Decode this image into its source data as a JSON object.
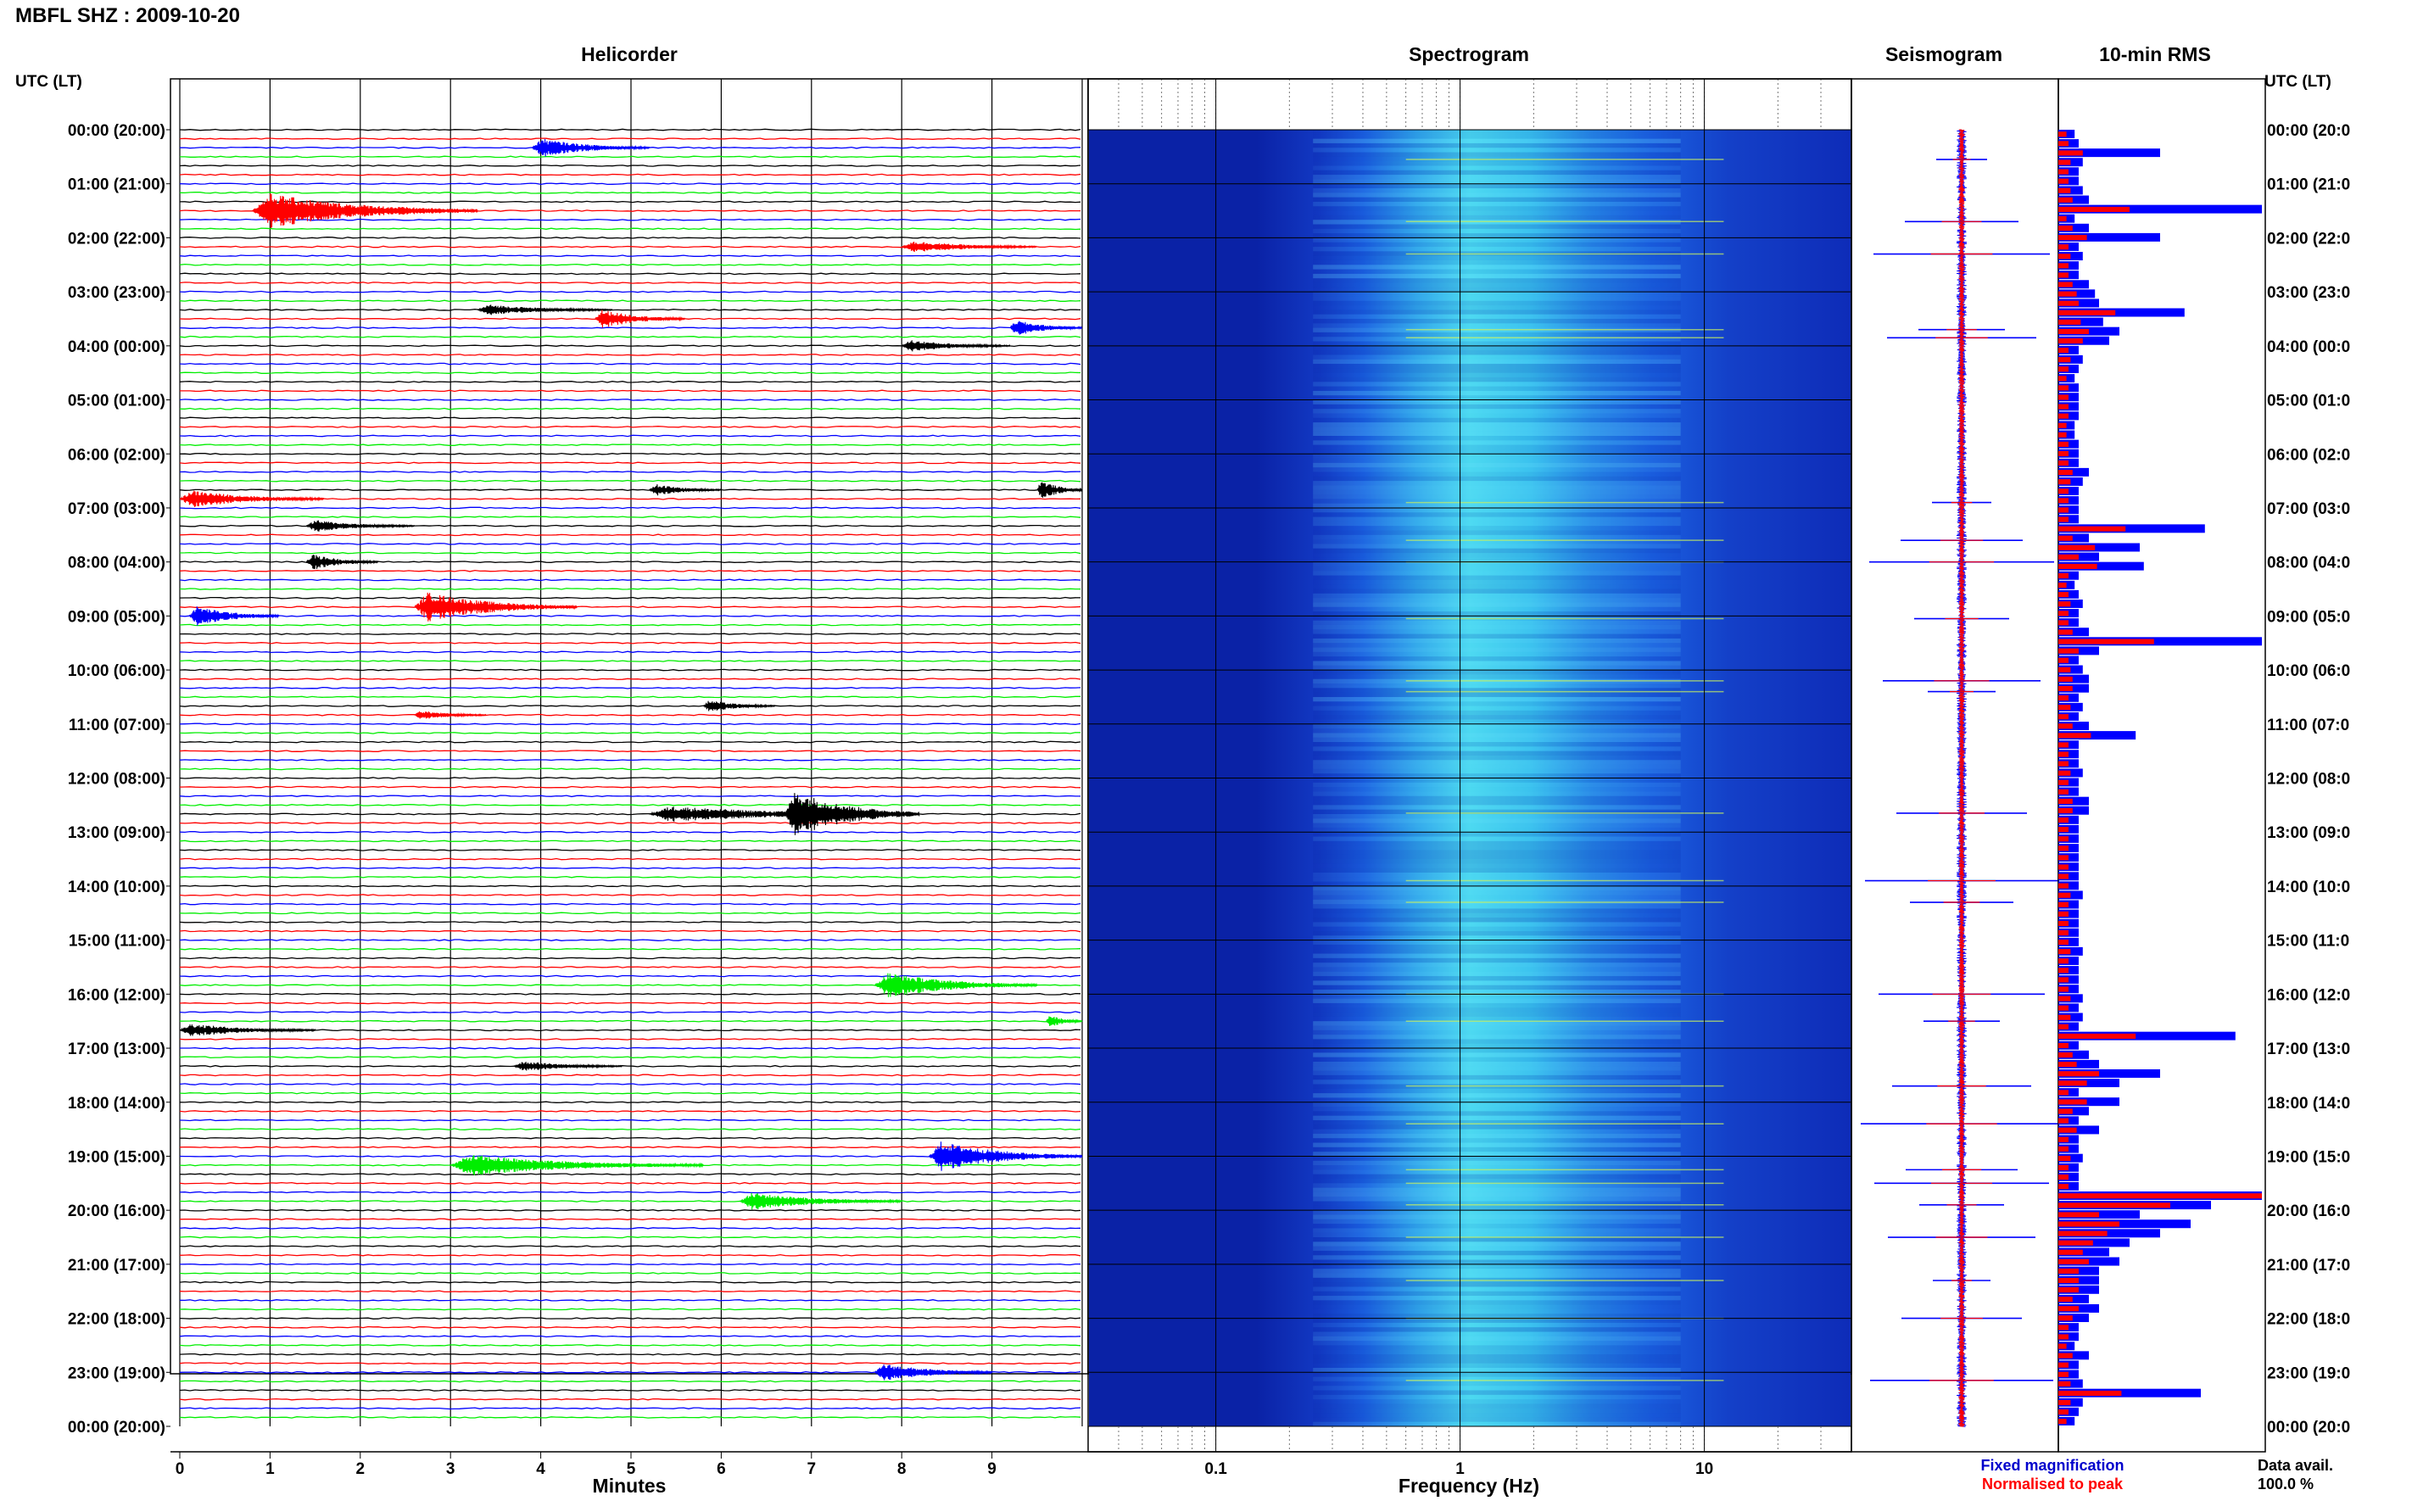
{
  "window_title": "MBFL SHZ : 2009-10-20",
  "panels": {
    "helicorder": "Helicorder",
    "spectrogram": "Spectrogram",
    "seismogram": "Seismogram",
    "rms": "10-min RMS"
  },
  "utc_label_left": "UTC (LT)",
  "utc_label_right": "UTC (LT)",
  "time_labels_left": [
    "00:00 (20:00)",
    "01:00 (21:00)",
    "02:00 (22:00)",
    "03:00 (23:00)",
    "04:00 (00:00)",
    "05:00 (01:00)",
    "06:00 (02:00)",
    "07:00 (03:00)",
    "08:00 (04:00)",
    "09:00 (05:00)",
    "10:00 (06:00)",
    "11:00 (07:00)",
    "12:00 (08:00)",
    "13:00 (09:00)",
    "14:00 (10:00)",
    "15:00 (11:00)",
    "16:00 (12:00)",
    "17:00 (13:00)",
    "18:00 (14:00)",
    "19:00 (15:00)",
    "20:00 (16:00)",
    "21:00 (17:00)",
    "22:00 (18:00)",
    "23:00 (19:00)",
    "00:00 (20:00)"
  ],
  "time_labels_right": [
    "00:00 (20:0",
    "01:00 (21:0",
    "02:00 (22:0",
    "03:00 (23:0",
    "04:00 (00:0",
    "05:00 (01:0",
    "06:00 (02:0",
    "07:00 (03:0",
    "08:00 (04:0",
    "09:00 (05:0",
    "10:00 (06:0",
    "11:00 (07:0",
    "12:00 (08:0",
    "13:00 (09:0",
    "14:00 (10:0",
    "15:00 (11:0",
    "16:00 (12:0",
    "17:00 (13:0",
    "18:00 (14:0",
    "19:00 (15:0",
    "20:00 (16:0",
    "21:00 (17:0",
    "22:00 (18:0",
    "23:00 (19:0",
    "00:00 (20:0"
  ],
  "minutes_ticks": [
    "0",
    "1",
    "2",
    "3",
    "4",
    "5",
    "6",
    "7",
    "8",
    "9"
  ],
  "minutes_label": "Minutes",
  "freq_ticks": [
    "0.1",
    "1",
    "10"
  ],
  "freq_label": "Frequency (Hz)",
  "legend": {
    "fixed": "Fixed magnification",
    "normalised": "Normalised to peak",
    "data_avail_label": "Data avail.",
    "data_avail_value": "100.0 %"
  },
  "colors": {
    "trace_black": "#000000",
    "trace_red": "#ff0000",
    "trace_blue": "#0000ff",
    "trace_green": "#00ee00",
    "legend_blue": "#0000cc",
    "legend_red": "#ff0000",
    "spectro_dark": "#0a22a6",
    "spectro_mid": "#1a5fe0",
    "spectro_bright": "#4ad8f0"
  },
  "chart_data": [
    {
      "type": "line",
      "panel": "helicorder",
      "xlabel": "Minutes",
      "xlim": [
        0,
        10
      ],
      "trace_color_cycle": [
        "black",
        "red",
        "blue",
        "green"
      ],
      "events": [
        {
          "hour": 0.25,
          "minute": 3.9,
          "duration": 1.3,
          "amp": 1.4
        },
        {
          "hour": 1.5,
          "minute": 0.8,
          "duration": 2.5,
          "amp": 2.6
        },
        {
          "hour": 2.1,
          "minute": 8.0,
          "duration": 1.5,
          "amp": 0.9
        },
        {
          "hour": 3.3,
          "minute": 3.3,
          "duration": 1.5,
          "amp": 0.8
        },
        {
          "hour": 3.5,
          "minute": 4.6,
          "duration": 1.0,
          "amp": 1.4
        },
        {
          "hour": 3.65,
          "minute": 9.2,
          "duration": 0.8,
          "amp": 1.2
        },
        {
          "hour": 4.0,
          "minute": 8.0,
          "duration": 1.2,
          "amp": 0.9
        },
        {
          "hour": 6.6,
          "minute": 5.2,
          "duration": 0.8,
          "amp": 0.9
        },
        {
          "hour": 6.65,
          "minute": 9.5,
          "duration": 0.5,
          "amp": 1.5
        },
        {
          "hour": 6.9,
          "minute": 0.0,
          "duration": 1.6,
          "amp": 1.3
        },
        {
          "hour": 7.35,
          "minute": 1.4,
          "duration": 1.2,
          "amp": 0.9
        },
        {
          "hour": 8.0,
          "minute": 1.4,
          "duration": 0.8,
          "amp": 1.2
        },
        {
          "hour": 8.95,
          "minute": 0.1,
          "duration": 1.0,
          "amp": 1.5
        },
        {
          "hour": 8.9,
          "minute": 2.6,
          "duration": 1.8,
          "amp": 2.2
        },
        {
          "hour": 10.6,
          "minute": 5.8,
          "duration": 0.8,
          "amp": 0.9
        },
        {
          "hour": 10.85,
          "minute": 2.6,
          "duration": 0.8,
          "amp": 0.7
        },
        {
          "hour": 12.6,
          "minute": 5.2,
          "duration": 3.0,
          "amp": 1.2
        },
        {
          "hour": 12.6,
          "minute": 6.7,
          "duration": 1.5,
          "amp": 3.5
        },
        {
          "hour": 15.8,
          "minute": 7.7,
          "duration": 1.8,
          "amp": 1.9
        },
        {
          "hour": 16.65,
          "minute": 0.0,
          "duration": 1.5,
          "amp": 1.0
        },
        {
          "hour": 16.55,
          "minute": 9.6,
          "duration": 0.4,
          "amp": 1.0
        },
        {
          "hour": 17.35,
          "minute": 3.7,
          "duration": 1.2,
          "amp": 0.8
        },
        {
          "hour": 18.95,
          "minute": 8.3,
          "duration": 1.8,
          "amp": 2.2
        },
        {
          "hour": 19.15,
          "minute": 3.0,
          "duration": 2.8,
          "amp": 1.6
        },
        {
          "hour": 19.8,
          "minute": 6.2,
          "duration": 1.8,
          "amp": 1.3
        },
        {
          "hour": 23.0,
          "minute": 7.7,
          "duration": 1.3,
          "amp": 1.3
        }
      ]
    },
    {
      "type": "heatmap",
      "panel": "spectrogram",
      "xlabel": "Frequency (Hz)",
      "x_scale": "log",
      "xlim": [
        0.03,
        40
      ],
      "ylim_hours": [
        0,
        24
      ],
      "peak_band_hz": [
        0.8,
        2.0
      ]
    },
    {
      "type": "bar",
      "panel": "rms",
      "title": "10-min RMS",
      "series": [
        {
          "name": "Fixed magnification",
          "color": "blue",
          "values": [
            0.08,
            0.1,
            0.5,
            0.12,
            0.1,
            0.1,
            0.12,
            0.15,
            1.0,
            0.08,
            0.15,
            0.5,
            0.1,
            0.12,
            0.1,
            0.1,
            0.15,
            0.18,
            0.2,
            0.62,
            0.22,
            0.3,
            0.25,
            0.1,
            0.12,
            0.1,
            0.08,
            0.1,
            0.1,
            0.1,
            0.1,
            0.08,
            0.08,
            0.1,
            0.1,
            0.1,
            0.15,
            0.12,
            0.1,
            0.1,
            0.1,
            0.1,
            0.72,
            0.15,
            0.4,
            0.2,
            0.42,
            0.1,
            0.08,
            0.1,
            0.12,
            0.1,
            0.1,
            0.15,
            1.0,
            0.2,
            0.1,
            0.12,
            0.15,
            0.15,
            0.1,
            0.12,
            0.1,
            0.15,
            0.38,
            0.1,
            0.1,
            0.1,
            0.12,
            0.1,
            0.1,
            0.15,
            0.15,
            0.1,
            0.1,
            0.1,
            0.1,
            0.1,
            0.1,
            0.1,
            0.1,
            0.12,
            0.1,
            0.1,
            0.1,
            0.1,
            0.1,
            0.12,
            0.1,
            0.1,
            0.1,
            0.1,
            0.12,
            0.1,
            0.12,
            0.1,
            0.87,
            0.1,
            0.15,
            0.2,
            0.5,
            0.3,
            0.1,
            0.3,
            0.15,
            0.1,
            0.2,
            0.1,
            0.1,
            0.12,
            0.1,
            0.1,
            0.1,
            1.0,
            0.75,
            0.4,
            0.65,
            0.5,
            0.35,
            0.25,
            0.3,
            0.2,
            0.2,
            0.2,
            0.15,
            0.2,
            0.15,
            0.1,
            0.1,
            0.08,
            0.15,
            0.1,
            0.1,
            0.12,
            0.7,
            0.12,
            0.1,
            0.08
          ]
        },
        {
          "name": "Normalised to peak",
          "color": "red",
          "values": [
            0.04,
            0.05,
            0.12,
            0.06,
            0.05,
            0.05,
            0.06,
            0.07,
            0.35,
            0.04,
            0.07,
            0.14,
            0.05,
            0.06,
            0.05,
            0.05,
            0.07,
            0.09,
            0.1,
            0.28,
            0.11,
            0.15,
            0.12,
            0.05,
            0.06,
            0.05,
            0.04,
            0.05,
            0.05,
            0.05,
            0.05,
            0.04,
            0.04,
            0.05,
            0.05,
            0.05,
            0.07,
            0.06,
            0.05,
            0.05,
            0.05,
            0.05,
            0.33,
            0.07,
            0.18,
            0.1,
            0.19,
            0.05,
            0.04,
            0.05,
            0.06,
            0.05,
            0.05,
            0.07,
            0.47,
            0.1,
            0.05,
            0.06,
            0.07,
            0.07,
            0.05,
            0.06,
            0.05,
            0.07,
            0.16,
            0.05,
            0.05,
            0.05,
            0.06,
            0.05,
            0.05,
            0.07,
            0.07,
            0.05,
            0.05,
            0.05,
            0.05,
            0.05,
            0.05,
            0.05,
            0.05,
            0.06,
            0.05,
            0.05,
            0.05,
            0.05,
            0.05,
            0.06,
            0.05,
            0.05,
            0.05,
            0.05,
            0.06,
            0.05,
            0.06,
            0.05,
            0.38,
            0.05,
            0.07,
            0.09,
            0.2,
            0.14,
            0.05,
            0.14,
            0.07,
            0.05,
            0.09,
            0.05,
            0.05,
            0.06,
            0.05,
            0.05,
            0.05,
            1.0,
            0.55,
            0.2,
            0.3,
            0.24,
            0.17,
            0.12,
            0.15,
            0.1,
            0.1,
            0.1,
            0.07,
            0.1,
            0.07,
            0.05,
            0.05,
            0.04,
            0.07,
            0.05,
            0.05,
            0.06,
            0.31,
            0.06,
            0.05,
            0.04
          ]
        }
      ]
    },
    {
      "type": "line",
      "panel": "seismogram",
      "title": "Seismogram",
      "spikes_hours": [
        0.55,
        1.7,
        2.3,
        3.7,
        3.85,
        6.9,
        7.6,
        8.0,
        9.05,
        10.2,
        10.4,
        12.65,
        13.9,
        14.3,
        16.0,
        16.5,
        17.7,
        18.4,
        19.25,
        19.5,
        19.9,
        20.5,
        21.3,
        22.0,
        23.15
      ]
    }
  ]
}
